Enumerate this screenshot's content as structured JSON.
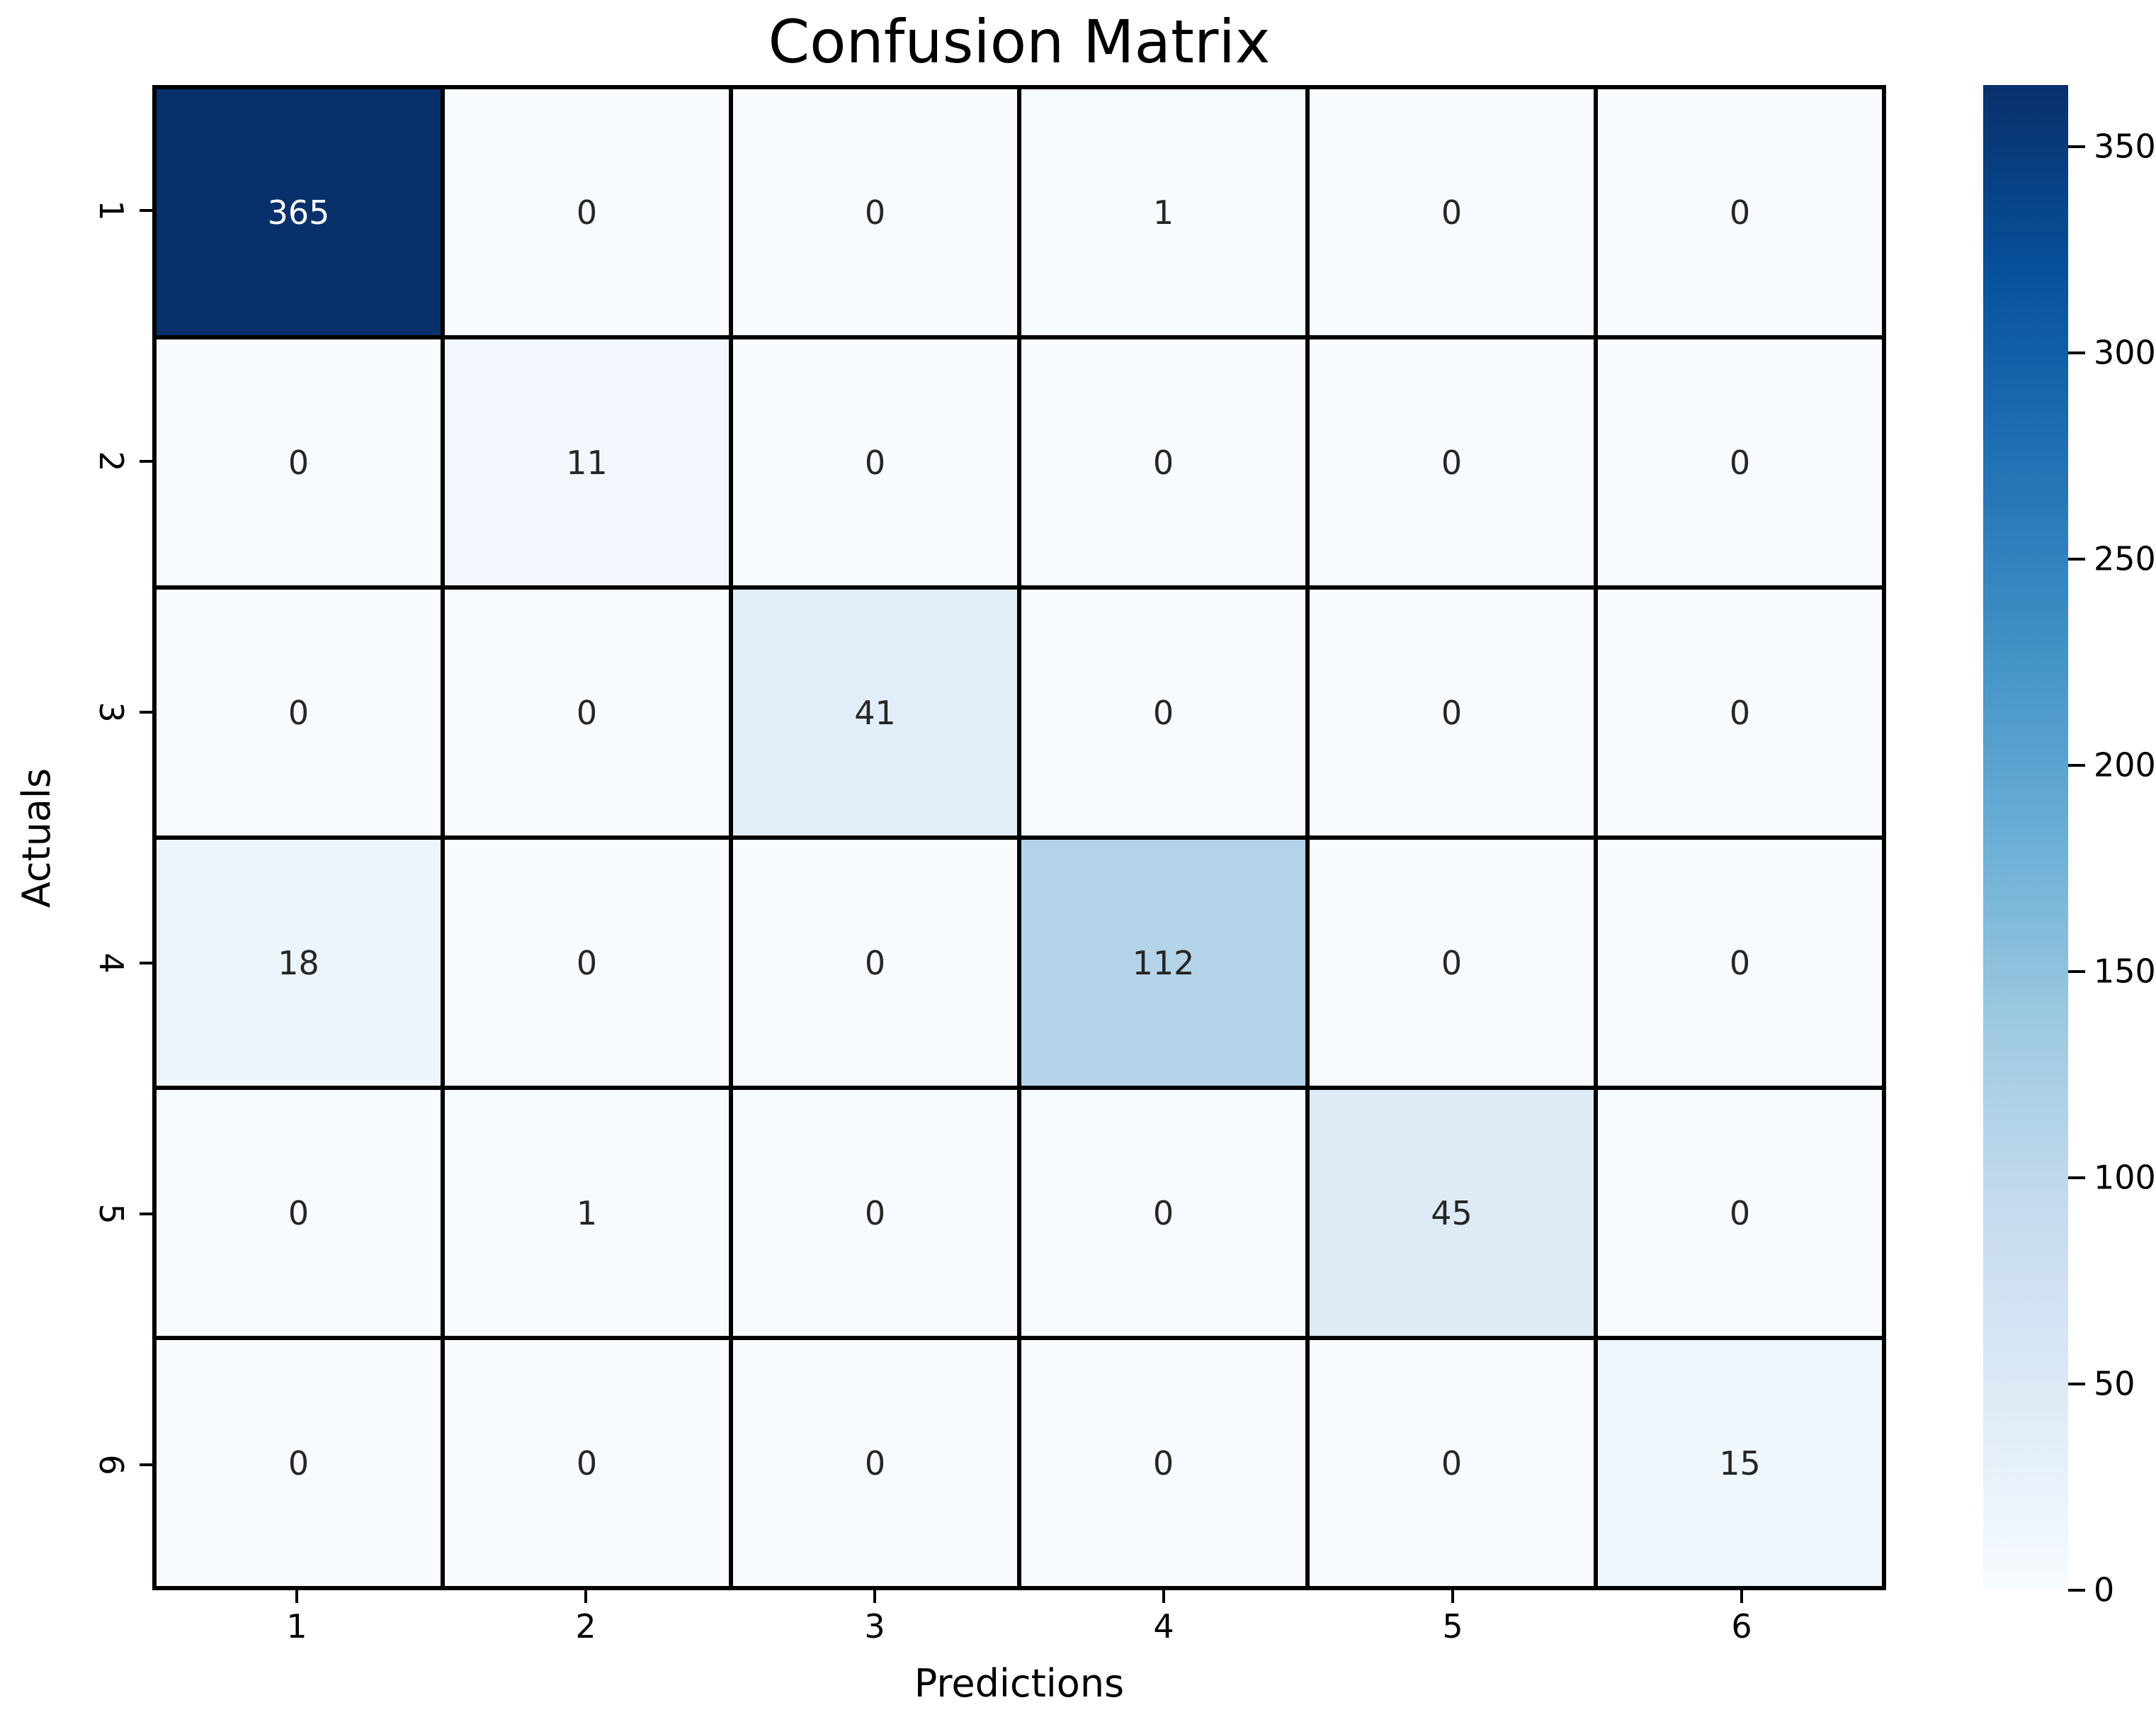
{
  "figure": {
    "background_color": "#ffffff",
    "text_color": "#000000",
    "grid_line_color": "#000000"
  },
  "chart_data": {
    "type": "heatmap",
    "title": "Confusion Matrix",
    "xlabel": "Predictions",
    "ylabel": "Actuals",
    "x_tick_labels": [
      "1",
      "2",
      "3",
      "4",
      "5",
      "6"
    ],
    "y_tick_labels": [
      "1",
      "2",
      "3",
      "4",
      "5",
      "6"
    ],
    "matrix": [
      [
        365,
        0,
        0,
        1,
        0,
        0
      ],
      [
        0,
        11,
        0,
        0,
        0,
        0
      ],
      [
        0,
        0,
        41,
        0,
        0,
        0
      ],
      [
        18,
        0,
        0,
        112,
        0,
        0
      ],
      [
        0,
        1,
        0,
        0,
        45,
        0
      ],
      [
        0,
        0,
        0,
        0,
        0,
        15
      ]
    ],
    "vmin": 0,
    "vmax": 365,
    "grid": "cell-borders",
    "legend_position": "right-colorbar",
    "colorbar_ticks": [
      0,
      50,
      100,
      150,
      200,
      250,
      300,
      350
    ],
    "colormap": {
      "name": "Blues",
      "stops": [
        {
          "pos": 0.0,
          "color": "#f7fbff"
        },
        {
          "pos": 0.125,
          "color": "#deebf7"
        },
        {
          "pos": 0.25,
          "color": "#c6dbef"
        },
        {
          "pos": 0.375,
          "color": "#9ecae1"
        },
        {
          "pos": 0.5,
          "color": "#6baed6"
        },
        {
          "pos": 0.625,
          "color": "#4292c6"
        },
        {
          "pos": 0.75,
          "color": "#2171b5"
        },
        {
          "pos": 0.875,
          "color": "#08519c"
        },
        {
          "pos": 1.0,
          "color": "#08306b"
        }
      ]
    },
    "annotation_dark_color": "#262626",
    "annotation_light_color": "#ffffff"
  }
}
